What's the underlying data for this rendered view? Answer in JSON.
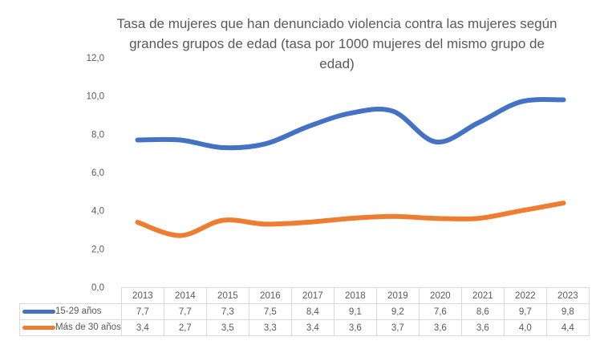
{
  "chart_data": {
    "type": "line",
    "title": "Tasa de mujeres que han denunciado violencia contra las mujeres según grandes grupos de edad (tasa por 1000 mujeres del mismo grupo de edad)",
    "title_lines": [
      "Tasa de mujeres que han denunciado violencia contra las mujeres según",
      "grandes grupos de edad (tasa por 1000 mujeres del mismo grupo de",
      "edad)"
    ],
    "xlabel": "",
    "ylabel": "",
    "categories": [
      "2013",
      "2014",
      "2015",
      "2016",
      "2017",
      "2018",
      "2019",
      "2020",
      "2021",
      "2022",
      "2023"
    ],
    "ylim": [
      0,
      12
    ],
    "yticks": [
      0,
      2,
      4,
      6,
      8,
      10,
      12
    ],
    "ytick_labels": [
      "0,0",
      "2,0",
      "4,0",
      "6,0",
      "8,0",
      "10,0",
      "12,0"
    ],
    "grid": false,
    "smooth": true,
    "legend": "bottom (data table)",
    "data_table": true,
    "series": [
      {
        "name": "15-29 años",
        "color": "#4472C4",
        "values": [
          7.7,
          7.7,
          7.3,
          7.5,
          8.4,
          9.1,
          9.2,
          7.6,
          8.6,
          9.7,
          9.8
        ],
        "labels": [
          "7,7",
          "7,7",
          "7,3",
          "7,5",
          "8,4",
          "9,1",
          "9,2",
          "7,6",
          "8,6",
          "9,7",
          "9,8"
        ]
      },
      {
        "name": "Más de 30 años",
        "color": "#ED7D31",
        "values": [
          3.4,
          2.7,
          3.5,
          3.3,
          3.4,
          3.6,
          3.7,
          3.6,
          3.6,
          4.0,
          4.4
        ],
        "labels": [
          "3,4",
          "2,7",
          "3,5",
          "3,3",
          "3,4",
          "3,6",
          "3,7",
          "3,6",
          "3,6",
          "4,0",
          "4,4"
        ]
      }
    ]
  }
}
